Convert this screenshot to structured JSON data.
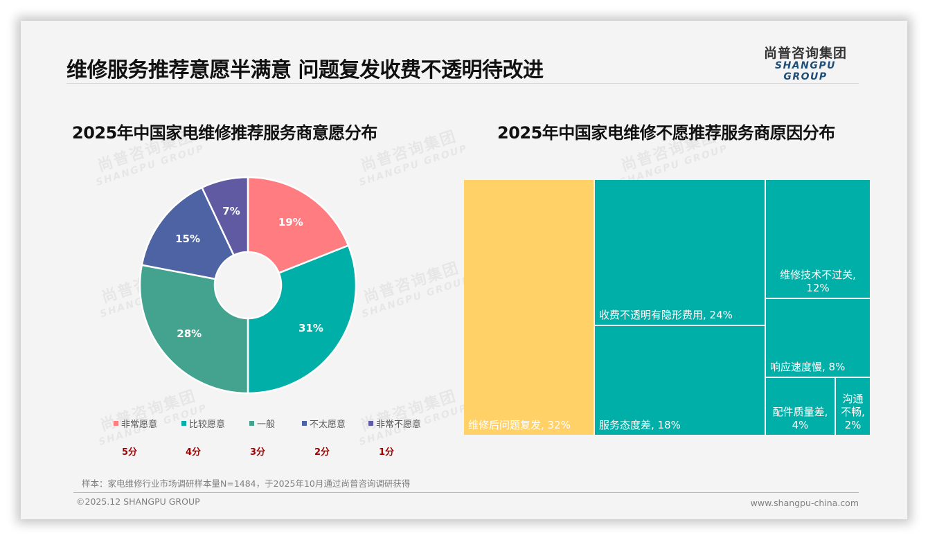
{
  "header": {
    "title": "维修服务推荐意愿半满意 问题复发收费不透明待改进",
    "logo_cn": "尚普咨询集团",
    "logo_en": "SHANGPU GROUP"
  },
  "watermark": {
    "cn": "尚普咨询集团",
    "en": "SHANGPU GROUP"
  },
  "left_chart": {
    "title": "2025年中国家电维修推荐服务商意愿分布",
    "scores": [
      "5分",
      "4分",
      "3分",
      "2分",
      "1分"
    ]
  },
  "right_chart": {
    "title": "2025年中国家电维修不愿推荐服务商原因分布"
  },
  "footer": {
    "note": "样本：家电维修行业市场调研样本量N=1484，于2025年10月通过尚普咨询调研获得",
    "copyright": "©2025.12 SHANGPU GROUP",
    "website": "www.shangpu-china.com"
  },
  "colors": {
    "pink": "#ff7c80",
    "teal": "#00b0a8",
    "green": "#43a38f",
    "blue": "#4e63a3",
    "purple": "#5f5aa2",
    "yellow": "#ffd166",
    "score_red": "#a00000"
  },
  "chart_data": [
    {
      "type": "pie",
      "subtype": "donut",
      "title": "2025年中国家电维修推荐服务商意愿分布",
      "categories": [
        "非常愿意",
        "比较愿意",
        "一般",
        "不太愿意",
        "非常不愿意"
      ],
      "values": [
        19,
        31,
        28,
        15,
        7
      ],
      "labels": [
        "19%",
        "31%",
        "28%",
        "15%",
        "7%"
      ],
      "scores": [
        "5分",
        "4分",
        "3分",
        "2分",
        "1分"
      ],
      "colors": [
        "#ff7c80",
        "#00b0a8",
        "#43a38f",
        "#4e63a3",
        "#5f5aa2"
      ],
      "legend_position": "bottom"
    },
    {
      "type": "treemap",
      "title": "2025年中国家电维修不愿推荐服务商原因分布",
      "categories": [
        "维修后问题复发",
        "收费不透明有隐形费用",
        "服务态度差",
        "维修技术不过关",
        "响应速度慢",
        "配件质量差",
        "沟通不畅"
      ],
      "values": [
        32,
        24,
        18,
        12,
        8,
        4,
        2
      ],
      "labels": [
        "维修后问题复发, 32%",
        "收费不透明有隐形费用, 24%",
        "服务态度差, 18%",
        "维修技术不过关, 12%",
        "响应速度慢, 8%",
        "配件质量差, 4%",
        "沟通不畅, 2%"
      ],
      "colors": [
        "#ffd166",
        "#00b0a8",
        "#00b0a8",
        "#00b0a8",
        "#00b0a8",
        "#00b0a8",
        "#00b0a8"
      ]
    }
  ]
}
